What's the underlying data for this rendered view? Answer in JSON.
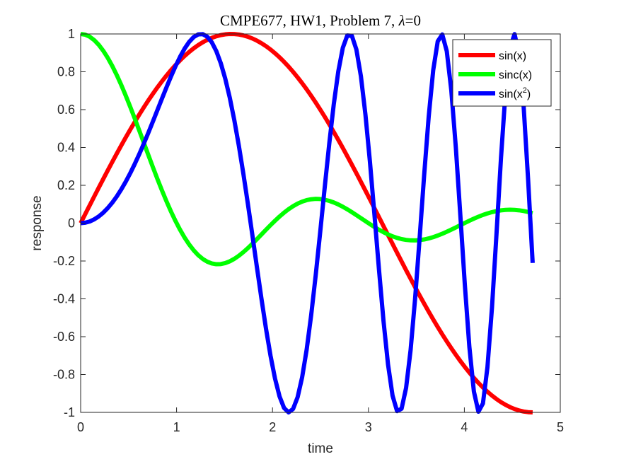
{
  "chart_data": {
    "type": "line",
    "title": "CMPE677, HW1, Problem 7, λ=0",
    "title_parts": {
      "main": "CMPE677, HW1, Problem 7, ",
      "symbol": "λ",
      "suffix": "=0"
    },
    "xlabel": "time",
    "ylabel": "response",
    "xlim": [
      0,
      5
    ],
    "ylim": [
      -1,
      1
    ],
    "xticks": [
      0,
      1,
      2,
      3,
      4,
      5
    ],
    "xtick_labels": [
      "0",
      "1",
      "2",
      "3",
      "4",
      "5"
    ],
    "yticks": [
      -1,
      -0.8,
      -0.6,
      -0.4,
      -0.2,
      0,
      0.2,
      0.4,
      0.6,
      0.8,
      1
    ],
    "ytick_labels": [
      "-1",
      "-0.8",
      "-0.6",
      "-0.4",
      "-0.2",
      "0",
      "0.2",
      "0.4",
      "0.6",
      "0.8",
      "1"
    ],
    "grid": false,
    "legend_position": "top-right",
    "x_domain": [
      0,
      4.712
    ],
    "samples": 101,
    "series": [
      {
        "name": "sin(x)",
        "legend_label": "sin(x)",
        "function": "sin(x)",
        "color": "#ff0000"
      },
      {
        "name": "sinc(x)",
        "legend_label": "sinc(x)",
        "function": "sin(pi*x)/(pi*x)",
        "color": "#00ff00"
      },
      {
        "name": "sin(x^2)",
        "legend_label": "sin(x",
        "legend_superscript": "2",
        "legend_suffix": ")",
        "function": "sin(x^2)",
        "color": "#0000ff"
      }
    ]
  }
}
